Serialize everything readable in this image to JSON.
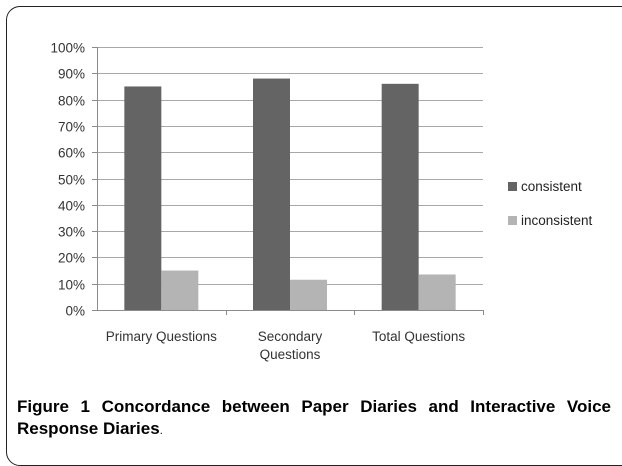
{
  "chart_data": {
    "type": "bar",
    "categories": [
      [
        "Primary Questions"
      ],
      [
        "Secondary",
        "Questions"
      ],
      [
        "Total Questions"
      ]
    ],
    "series": [
      {
        "name": "consistent",
        "values": [
          85,
          88,
          86
        ],
        "color": "#646464"
      },
      {
        "name": "inconsistent",
        "values": [
          15,
          11.5,
          13.5
        ],
        "color": "#b4b4b4"
      }
    ],
    "ylim": [
      0,
      100
    ],
    "y_tick_step": 10,
    "y_tick_format": "percent",
    "grid": true,
    "legend_position": "right"
  },
  "caption": {
    "label": "Figure 1",
    "title": "Concordance between Paper Diaries and Interactive Voice Response Diaries",
    "end_mark": "."
  }
}
